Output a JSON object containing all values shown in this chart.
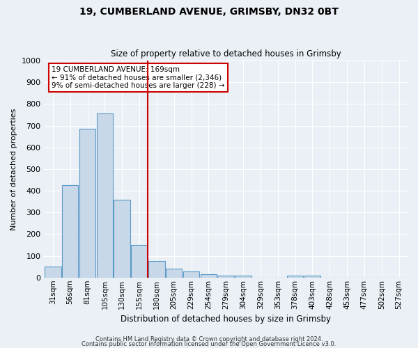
{
  "title1": "19, CUMBERLAND AVENUE, GRIMSBY, DN32 0BT",
  "title2": "Size of property relative to detached houses in Grimsby",
  "xlabel": "Distribution of detached houses by size in Grimsby",
  "ylabel": "Number of detached properties",
  "bar_labels": [
    "31sqm",
    "56sqm",
    "81sqm",
    "105sqm",
    "130sqm",
    "155sqm",
    "180sqm",
    "205sqm",
    "229sqm",
    "254sqm",
    "279sqm",
    "304sqm",
    "329sqm",
    "353sqm",
    "378sqm",
    "403sqm",
    "428sqm",
    "453sqm",
    "477sqm",
    "502sqm",
    "527sqm"
  ],
  "bar_heights": [
    50,
    425,
    685,
    757,
    360,
    150,
    75,
    40,
    28,
    15,
    10,
    8,
    0,
    0,
    10,
    10,
    0,
    0,
    0,
    0,
    0
  ],
  "bar_color": "#c8d8e8",
  "bar_edge_color": "#5a9ac8",
  "background_color": "#eaf0f6",
  "grid_color": "#ffffff",
  "red_line_x": 6.0,
  "annotation_text": "19 CUMBERLAND AVENUE: 169sqm\n← 91% of detached houses are smaller (2,346)\n9% of semi-detached houses are larger (228) →",
  "annotation_box_color": "#ffffff",
  "annotation_box_edge": "#cc0000",
  "ylim": [
    0,
    1000
  ],
  "yticks": [
    0,
    100,
    200,
    300,
    400,
    500,
    600,
    700,
    800,
    900,
    1000
  ],
  "footer1": "Contains HM Land Registry data © Crown copyright and database right 2024.",
  "footer2": "Contains public sector information licensed under the Open Government Licence v3.0."
}
